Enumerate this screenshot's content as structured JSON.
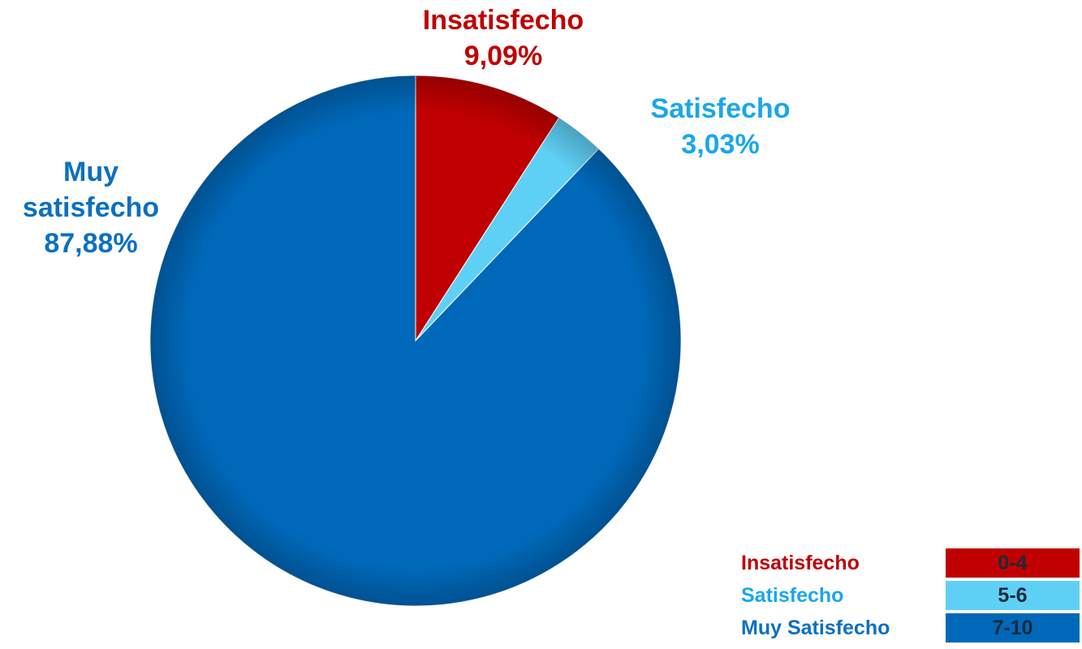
{
  "chart_data": {
    "type": "pie",
    "start_angle_deg": 0,
    "direction": "clockwise",
    "slices": [
      {
        "label_lines": [
          "Insatisfecho",
          "9,09%"
        ],
        "value": 9.09,
        "color": "#c00000",
        "text_color": "#c00000"
      },
      {
        "label_lines": [
          "Satisfecho",
          "3,03%"
        ],
        "value": 3.03,
        "color": "#5fd0f5",
        "text_color": "#1aa7ea"
      },
      {
        "label_lines": [
          "Muy",
          "satisfecho",
          "87,88%"
        ],
        "value": 87.88,
        "color": "#0068b9",
        "text_color": "#0b70c0"
      }
    ],
    "legend": {
      "placement": "bottom-right",
      "entries": [
        {
          "name": "Insatisfecho",
          "range": "0-4",
          "color": "#c00000",
          "text_color": "#c00000"
        },
        {
          "name": "Satisfecho",
          "range": "5-6",
          "color": "#5fd0f5",
          "text_color": "#1aa7ea"
        },
        {
          "name": "Muy Satisfecho",
          "range": "7-10",
          "color": "#0068b9",
          "text_color": "#0b70c0"
        }
      ]
    }
  }
}
